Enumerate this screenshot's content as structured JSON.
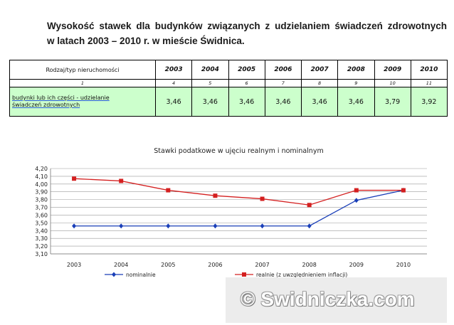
{
  "heading": {
    "line1": "Wysokość stawek dla budynków związanych z udzielaniem świadczeń zdrowotnych",
    "line2": "w latach 2003 – 2010 r. w mieście Świdnica."
  },
  "table": {
    "col1_header": "Rodzaj/typ nieruchomości",
    "years": [
      "2003",
      "2004",
      "2005",
      "2006",
      "2007",
      "2008",
      "2009",
      "2010"
    ],
    "indices": [
      "1",
      "4",
      "5",
      "6",
      "7",
      "8",
      "9",
      "10",
      "11"
    ],
    "row": {
      "name_line1": "budynki lub ich części - udzielanie",
      "name_line2": "świadczeń zdrowotnych",
      "values": [
        "3,46",
        "3,46",
        "3,46",
        "3,46",
        "3,46",
        "3,46",
        "3,79",
        "3,92"
      ]
    }
  },
  "chart_data": {
    "type": "line",
    "title": "Stawki podatkowe w ujęciu realnym i nominalnym",
    "categories": [
      "2003",
      "2004",
      "2005",
      "2006",
      "2007",
      "2008",
      "2009",
      "2010"
    ],
    "ylim": [
      3.1,
      4.2
    ],
    "yticks": [
      "4,20",
      "4,10",
      "4,00",
      "3,90",
      "3,80",
      "3,70",
      "3,60",
      "3,50",
      "3,40",
      "3,30",
      "3,20",
      "3,10"
    ],
    "grid": true,
    "legend_position": "bottom",
    "series": [
      {
        "name": "nominalnie",
        "color": "#1a3fb8",
        "marker": "diamond",
        "values": [
          3.46,
          3.46,
          3.46,
          3.46,
          3.46,
          3.46,
          3.79,
          3.92
        ]
      },
      {
        "name": "realnie (z uwzględnieniem inflacji)",
        "color": "#d42020",
        "marker": "square",
        "values": [
          4.07,
          4.04,
          3.92,
          3.85,
          3.81,
          3.73,
          3.92,
          3.92
        ]
      }
    ]
  },
  "watermark": {
    "text": "© Swidniczka.com"
  }
}
